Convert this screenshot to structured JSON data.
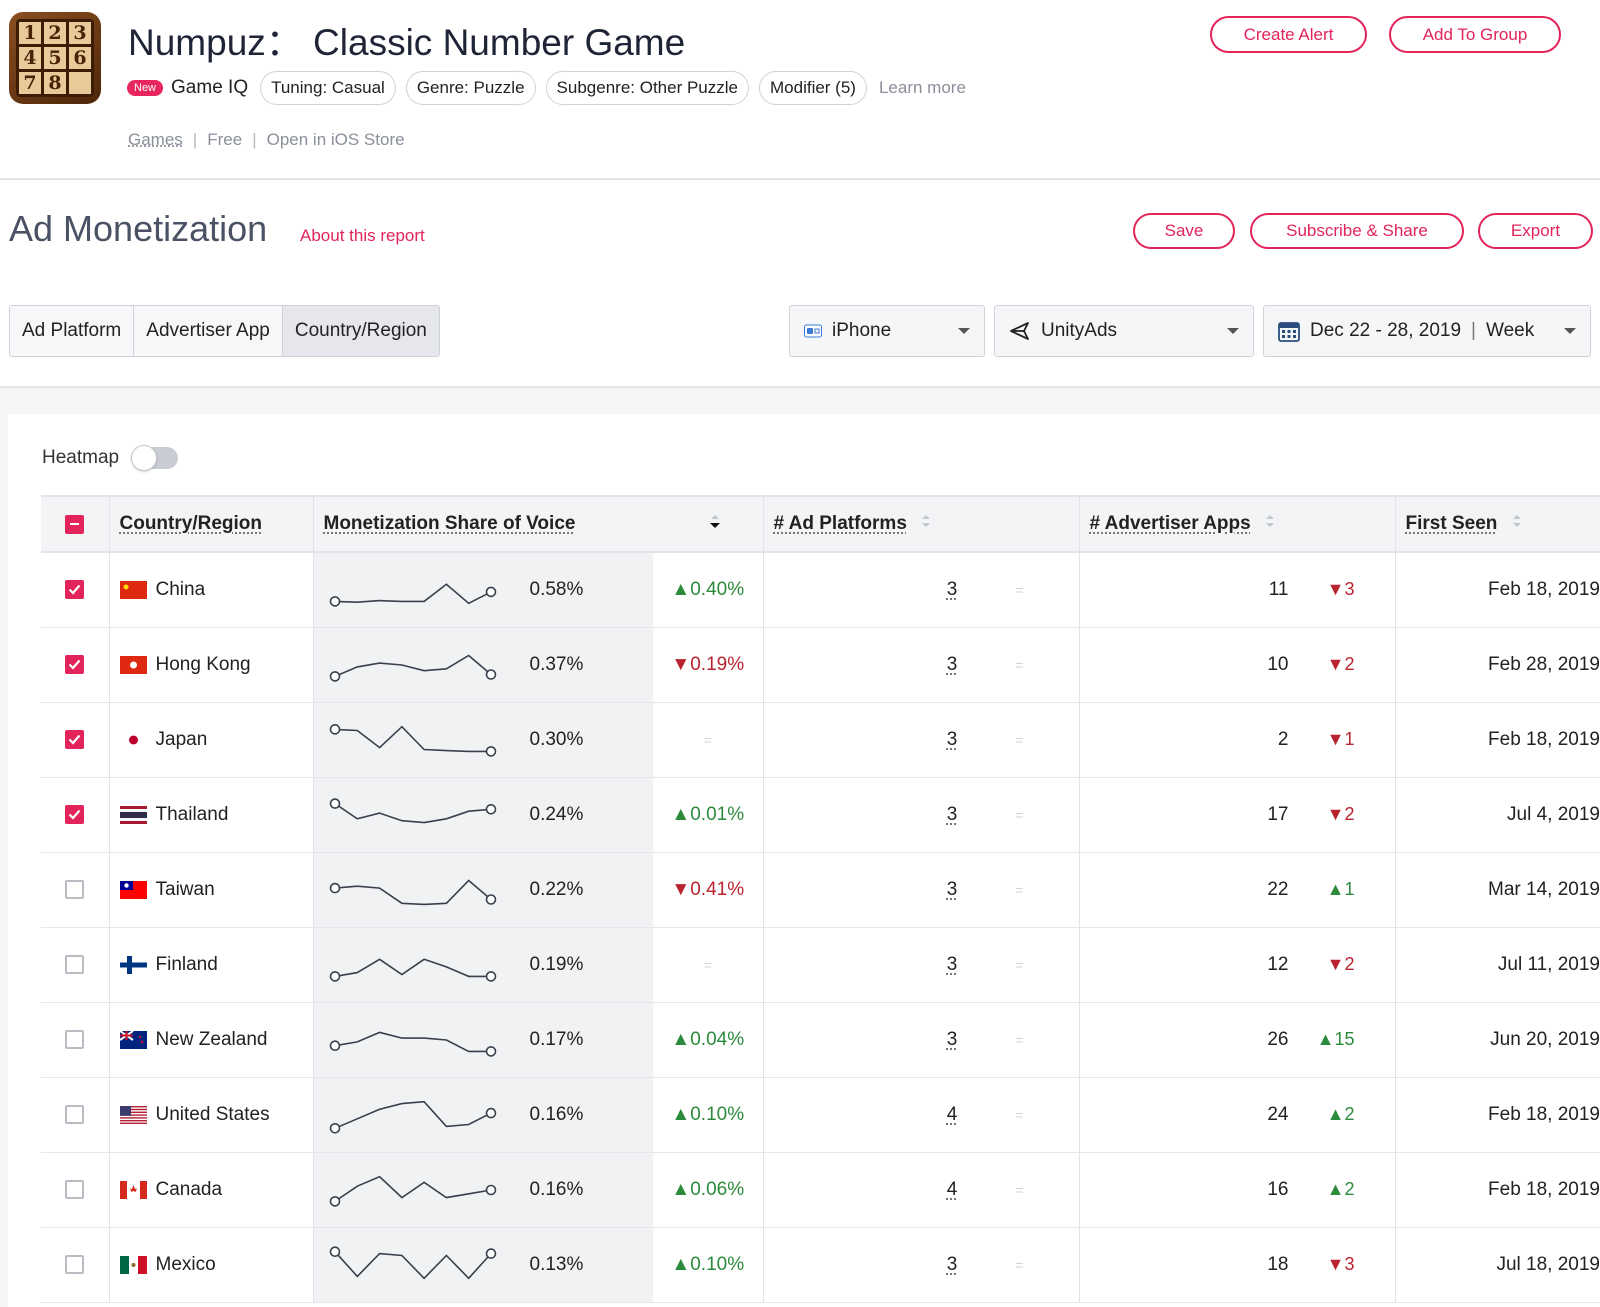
{
  "app": {
    "title": "Numpuz： Classic Number Game",
    "icon_digits": [
      "1",
      "2",
      "3",
      "4",
      "5",
      "6",
      "7",
      "8",
      ""
    ],
    "new_badge": "New",
    "game_iq": "Game IQ",
    "tags": [
      "Tuning: Casual",
      "Genre: Puzzle",
      "Subgenre: Other Puzzle",
      "Modifier (5)"
    ],
    "learn_more": "Learn more",
    "links": {
      "games": "Games",
      "price": "Free",
      "store": "Open in iOS Store"
    },
    "create_alert": "Create Alert",
    "add_to_group": "Add To Group"
  },
  "report": {
    "title": "Ad Monetization",
    "about": "About this report",
    "save": "Save",
    "subscribe": "Subscribe & Share",
    "export": "Export",
    "tabs": [
      "Ad Platform",
      "Advertiser App",
      "Country/Region"
    ],
    "active_tab": "Country/Region",
    "device": "iPhone",
    "network": "UnityAds",
    "date_range": "Dec 22 - 28, 2019",
    "granularity": "Week",
    "heatmap_label": "Heatmap"
  },
  "table": {
    "headers": {
      "country": "Country/Region",
      "share": "Monetization Share of Voice",
      "platforms": "# Ad Platforms",
      "apps": "# Advertiser Apps",
      "first_seen": "First Seen"
    },
    "rows": [
      {
        "checked": true,
        "flag": "china",
        "country": "China",
        "spark": [
          0.2,
          0.18,
          0.22,
          0.2,
          0.2,
          0.65,
          0.15,
          0.45
        ],
        "share": "0.58%",
        "share_change": "0.40%",
        "share_dir": "up",
        "platforms": "3",
        "apps": "11",
        "apps_change": "3",
        "apps_dir": "down",
        "first_seen": "Feb 18, 2019"
      },
      {
        "checked": true,
        "flag": "hongkong",
        "country": "Hong Kong",
        "spark": [
          0.2,
          0.45,
          0.55,
          0.5,
          0.35,
          0.4,
          0.75,
          0.25
        ],
        "share": "0.37%",
        "share_change": "0.19%",
        "share_dir": "down",
        "platforms": "3",
        "apps": "10",
        "apps_change": "2",
        "apps_dir": "down",
        "first_seen": "Feb 28, 2019"
      },
      {
        "checked": true,
        "flag": "japan",
        "country": "Japan",
        "spark": [
          0.78,
          0.75,
          0.3,
          0.85,
          0.25,
          0.22,
          0.2,
          0.2
        ],
        "share": "0.30%",
        "share_change": "",
        "share_dir": "eq",
        "platforms": "3",
        "apps": "2",
        "apps_change": "1",
        "apps_dir": "down",
        "first_seen": "Feb 18, 2019"
      },
      {
        "checked": true,
        "flag": "thailand",
        "country": "Thailand",
        "spark": [
          0.8,
          0.4,
          0.55,
          0.35,
          0.3,
          0.4,
          0.6,
          0.65
        ],
        "share": "0.24%",
        "share_change": "0.01%",
        "share_dir": "up",
        "platforms": "3",
        "apps": "17",
        "apps_change": "2",
        "apps_dir": "down",
        "first_seen": "Jul 4, 2019"
      },
      {
        "checked": false,
        "flag": "taiwan",
        "country": "Taiwan",
        "spark": [
          0.55,
          0.6,
          0.55,
          0.15,
          0.12,
          0.15,
          0.75,
          0.25
        ],
        "share": "0.22%",
        "share_change": "0.41%",
        "share_dir": "down",
        "platforms": "3",
        "apps": "22",
        "apps_change": "1",
        "apps_dir": "up",
        "first_seen": "Mar 14, 2019"
      },
      {
        "checked": false,
        "flag": "finland",
        "country": "Finland",
        "spark": [
          0.2,
          0.3,
          0.65,
          0.25,
          0.65,
          0.45,
          0.2,
          0.2
        ],
        "share": "0.19%",
        "share_change": "",
        "share_dir": "eq",
        "platforms": "3",
        "apps": "12",
        "apps_change": "2",
        "apps_dir": "down",
        "first_seen": "Jul 11, 2019"
      },
      {
        "checked": false,
        "flag": "newzealand",
        "country": "New Zealand",
        "spark": [
          0.35,
          0.45,
          0.7,
          0.55,
          0.55,
          0.5,
          0.2,
          0.2
        ],
        "share": "0.17%",
        "share_change": "0.04%",
        "share_dir": "up",
        "platforms": "3",
        "apps": "26",
        "apps_change": "15",
        "apps_dir": "up",
        "first_seen": "Jun 20, 2019"
      },
      {
        "checked": false,
        "flag": "usa",
        "country": "United States",
        "spark": [
          0.15,
          0.4,
          0.65,
          0.8,
          0.85,
          0.2,
          0.25,
          0.55
        ],
        "share": "0.16%",
        "share_change": "0.10%",
        "share_dir": "up",
        "platforms": "4",
        "apps": "24",
        "apps_change": "2",
        "apps_dir": "up",
        "first_seen": "Feb 18, 2019"
      },
      {
        "checked": false,
        "flag": "canada",
        "country": "Canada",
        "spark": [
          0.2,
          0.6,
          0.85,
          0.3,
          0.7,
          0.3,
          0.4,
          0.5
        ],
        "share": "0.16%",
        "share_change": "0.06%",
        "share_dir": "up",
        "platforms": "4",
        "apps": "16",
        "apps_change": "2",
        "apps_dir": "up",
        "first_seen": "Feb 18, 2019"
      },
      {
        "checked": false,
        "flag": "mexico",
        "country": "Mexico",
        "spark": [
          0.85,
          0.2,
          0.8,
          0.75,
          0.15,
          0.75,
          0.15,
          0.8
        ],
        "share": "0.13%",
        "share_change": "0.10%",
        "share_dir": "up",
        "platforms": "3",
        "apps": "18",
        "apps_change": "3",
        "apps_dir": "down",
        "first_seen": "Jul 18, 2019"
      }
    ]
  },
  "colors": {
    "accent": "#e3245b",
    "up": "#2c8a3c",
    "down": "#b8232f"
  }
}
